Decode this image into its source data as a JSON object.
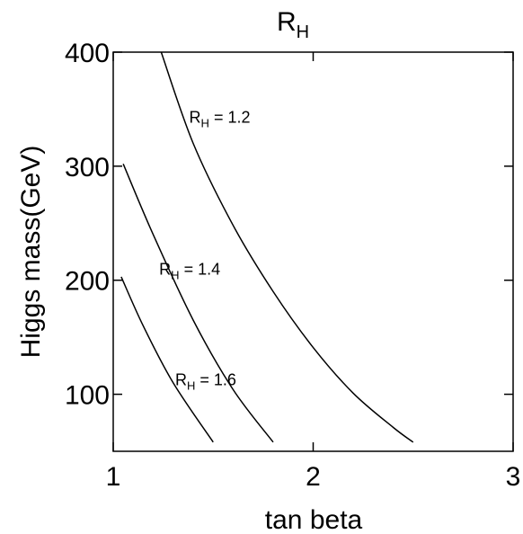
{
  "chart_data": {
    "type": "line",
    "title": {
      "main": "R",
      "subscript": "H"
    },
    "xlabel": "tan beta",
    "ylabel": "Higgs mass(GeV)",
    "xlim": [
      1,
      3
    ],
    "ylim": [
      50,
      400
    ],
    "xticks": [
      1,
      2,
      3
    ],
    "yticks": [
      100,
      200,
      300,
      400
    ],
    "grid": false,
    "legend": "none",
    "series": [
      {
        "annotation": {
          "main": "R",
          "subscript": "H",
          "rest": " = 1.2"
        },
        "x": [
          1.24,
          1.4,
          1.6,
          1.8,
          2.0,
          2.2,
          2.4,
          2.5
        ],
        "y": [
          400,
          320,
          248,
          190,
          141,
          101,
          71,
          58
        ]
      },
      {
        "annotation": {
          "main": "R",
          "subscript": "H",
          "rest": " = 1.4"
        },
        "x": [
          1.05,
          1.2,
          1.4,
          1.6,
          1.8
        ],
        "y": [
          302,
          240,
          165,
          104,
          58
        ]
      },
      {
        "annotation": {
          "main": "R",
          "subscript": "H",
          "rest": " = 1.6"
        },
        "x": [
          1.04,
          1.15,
          1.3,
          1.5
        ],
        "y": [
          203,
          160,
          110,
          58
        ]
      }
    ],
    "line_color": "#000000"
  }
}
